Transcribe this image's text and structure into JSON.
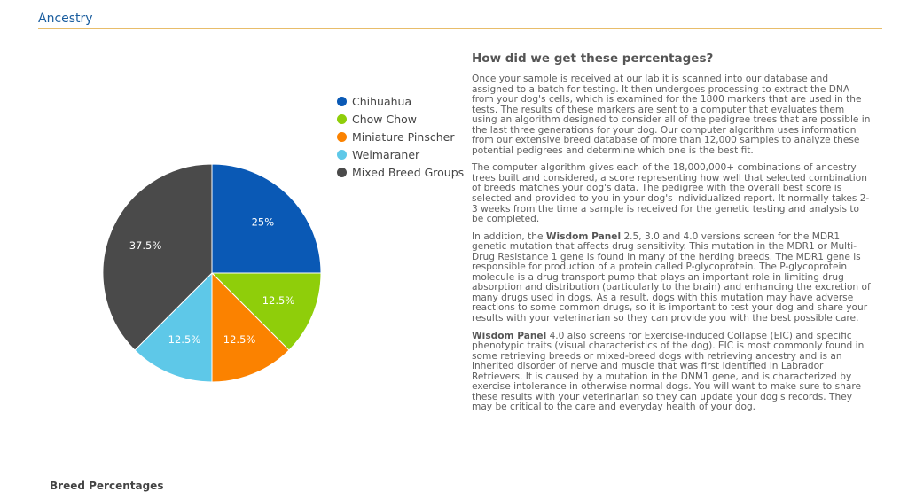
{
  "section": {
    "title": "Ancestry",
    "next_section_title": "Breed Percentages"
  },
  "chart_data": {
    "type": "pie",
    "title": "",
    "slices": [
      {
        "name": "Chihuahua",
        "value": 25,
        "label": "25%",
        "color": "#0a59b5"
      },
      {
        "name": "Chow Chow",
        "value": 12.5,
        "label": "12.5%",
        "color": "#8fce0a"
      },
      {
        "name": "Miniature Pinscher",
        "value": 12.5,
        "label": "12.5%",
        "color": "#fb8200"
      },
      {
        "name": "Weimaraner",
        "value": 12.5,
        "label": "12.5%",
        "color": "#5ec8e8"
      },
      {
        "name": "Mixed Breed Groups",
        "value": 37.5,
        "label": "37.5%",
        "color": "#4a4a4a"
      }
    ],
    "legend_position": "right"
  },
  "info": {
    "heading": "How did we get these percentages?",
    "p1": "Once your sample is received at our lab it is scanned into our database and assigned to a batch for testing. It then undergoes processing to extract the DNA from your dog's cells, which is examined for the 1800 markers that are used in the tests. The results of these markers are sent to a computer that evaluates them using an algorithm designed to consider all of the pedigree trees that are possible in the last three generations for your dog. Our computer algorithm uses information from our extensive breed database of more than 12,000 samples to analyze these potential pedigrees and determine which one is the best fit.",
    "p2": "The computer algorithm gives each of the 18,000,000+ combinations of ancestry trees built and considered, a score representing how well that selected combination of breeds matches your dog's data. The pedigree with the overall best score is selected and provided to you in your dog's individualized report. It normally takes 2-3 weeks from the time a sample is received for the genetic testing and analysis to be completed.",
    "p3_pre": "In addition, the ",
    "p3_bold": "Wisdom Panel",
    "p3_post": " 2.5, 3.0 and 4.0 versions screen for the MDR1 genetic mutation that affects drug sensitivity. This mutation in the MDR1 or Multi-Drug Resistance 1 gene is found in many of the herding breeds. The MDR1 gene is responsible for production of a protein called P-glycoprotein. The P-glycoprotein molecule is a drug transport pump that plays an important role in limiting drug absorption and distribution (particularly to the brain) and enhancing the excretion of many drugs used in dogs. As a result, dogs with this mutation may have adverse reactions to some common drugs, so it is important to test your dog and share your results with your veterinarian so they can provide you with the best possible care.",
    "p4_bold": "Wisdom Panel",
    "p4_post": " 4.0 also screens for Exercise-induced Collapse (EIC) and specific phenotypic traits (visual characteristics of the dog). EIC is most commonly found in some retrieving breeds or mixed-breed dogs with retrieving ancestry and is an inherited disorder of nerve and muscle that was first identified in Labrador Retrievers. It is caused by a mutation in the DNM1 gene, and is characterized by exercise intolerance in otherwise normal dogs. You will want to make sure to share these results with your veterinarian so they can update your dog's records. They may be critical to the care and everyday health of your dog."
  }
}
